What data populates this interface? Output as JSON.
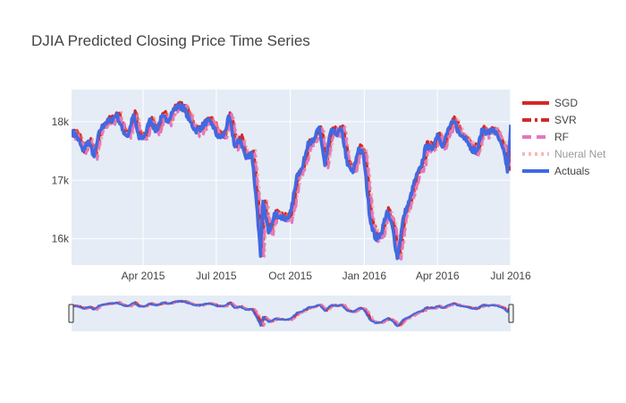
{
  "chart_data": {
    "type": "line",
    "title": "DJIA Predicted Closing Price Time Series",
    "xlabel": "",
    "ylabel": "",
    "xlim": [
      "2015-01-02",
      "2016-07-01"
    ],
    "ylim": [
      15550,
      18550
    ],
    "x_ticks": [
      {
        "date": "2015-04-01",
        "label": "Apr 2015"
      },
      {
        "date": "2015-07-01",
        "label": "Jul 2015"
      },
      {
        "date": "2015-10-01",
        "label": "Oct 2015"
      },
      {
        "date": "2016-01-01",
        "label": "Jan 2016"
      },
      {
        "date": "2016-04-01",
        "label": "Apr 2016"
      },
      {
        "date": "2016-07-01",
        "label": "Jul 2016"
      }
    ],
    "y_ticks": [
      {
        "value": 16000,
        "label": "16k"
      },
      {
        "value": 17000,
        "label": "17k"
      },
      {
        "value": 18000,
        "label": "18k"
      }
    ],
    "grid": true,
    "legend_position": "right",
    "range_slider": true,
    "actuals": [
      [
        "2015-01-02",
        17830
      ],
      [
        "2015-01-09",
        17740
      ],
      [
        "2015-01-16",
        17500
      ],
      [
        "2015-01-23",
        17670
      ],
      [
        "2015-01-30",
        17400
      ],
      [
        "2015-02-06",
        17850
      ],
      [
        "2015-02-13",
        17980
      ],
      [
        "2015-02-20",
        18020
      ],
      [
        "2015-02-27",
        18130
      ],
      [
        "2015-03-06",
        17860
      ],
      [
        "2015-03-13",
        17750
      ],
      [
        "2015-03-20",
        18120
      ],
      [
        "2015-03-27",
        17710
      ],
      [
        "2015-04-03",
        17760
      ],
      [
        "2015-04-10",
        18050
      ],
      [
        "2015-04-17",
        17830
      ],
      [
        "2015-04-24",
        18080
      ],
      [
        "2015-05-01",
        18020
      ],
      [
        "2015-05-08",
        18190
      ],
      [
        "2015-05-15",
        18270
      ],
      [
        "2015-05-22",
        18230
      ],
      [
        "2015-05-29",
        18010
      ],
      [
        "2015-06-05",
        17850
      ],
      [
        "2015-06-12",
        17900
      ],
      [
        "2015-06-19",
        18010
      ],
      [
        "2015-06-26",
        17950
      ],
      [
        "2015-07-03",
        17730
      ],
      [
        "2015-07-10",
        17760
      ],
      [
        "2015-07-17",
        18090
      ],
      [
        "2015-07-24",
        17570
      ],
      [
        "2015-07-31",
        17690
      ],
      [
        "2015-08-07",
        17370
      ],
      [
        "2015-08-14",
        17480
      ],
      [
        "2015-08-21",
        16460
      ],
      [
        "2015-08-25",
        15700
      ],
      [
        "2015-08-28",
        16640
      ],
      [
        "2015-09-04",
        16100
      ],
      [
        "2015-09-11",
        16430
      ],
      [
        "2015-09-18",
        16380
      ],
      [
        "2015-09-25",
        16310
      ],
      [
        "2015-10-02",
        16470
      ],
      [
        "2015-10-09",
        17080
      ],
      [
        "2015-10-16",
        17210
      ],
      [
        "2015-10-23",
        17650
      ],
      [
        "2015-10-30",
        17660
      ],
      [
        "2015-11-06",
        17910
      ],
      [
        "2015-11-13",
        17250
      ],
      [
        "2015-11-20",
        17820
      ],
      [
        "2015-11-27",
        17800
      ],
      [
        "2015-12-04",
        17850
      ],
      [
        "2015-12-11",
        17260
      ],
      [
        "2015-12-18",
        17130
      ],
      [
        "2015-12-25",
        17550
      ],
      [
        "2015-12-31",
        17430
      ],
      [
        "2016-01-08",
        16350
      ],
      [
        "2016-01-15",
        15990
      ],
      [
        "2016-01-22",
        16090
      ],
      [
        "2016-01-29",
        16470
      ],
      [
        "2016-02-05",
        16200
      ],
      [
        "2016-02-11",
        15660
      ],
      [
        "2016-02-19",
        16390
      ],
      [
        "2016-02-26",
        16640
      ],
      [
        "2016-03-04",
        17010
      ],
      [
        "2016-03-11",
        17210
      ],
      [
        "2016-03-18",
        17600
      ],
      [
        "2016-03-25",
        17520
      ],
      [
        "2016-04-01",
        17790
      ],
      [
        "2016-04-08",
        17580
      ],
      [
        "2016-04-15",
        17900
      ],
      [
        "2016-04-22",
        18000
      ],
      [
        "2016-04-29",
        17770
      ],
      [
        "2016-05-06",
        17740
      ],
      [
        "2016-05-13",
        17540
      ],
      [
        "2016-05-20",
        17500
      ],
      [
        "2016-05-27",
        17870
      ],
      [
        "2016-06-03",
        17810
      ],
      [
        "2016-06-10",
        17870
      ],
      [
        "2016-06-17",
        17680
      ],
      [
        "2016-06-24",
        17400
      ],
      [
        "2016-06-27",
        17140
      ],
      [
        "2016-07-01",
        17950
      ]
    ],
    "series": [
      {
        "name": "SGD",
        "color": "#d62728",
        "dash": "solid",
        "offset": 60,
        "noise": 35
      },
      {
        "name": "SVR",
        "color": "#cf2b2b",
        "dash": "dashdot",
        "offset": 40,
        "noise": 30
      },
      {
        "name": "RF",
        "color": "#e377c2",
        "dash": "dash",
        "offset": -40,
        "noise": 45
      },
      {
        "name": "Nueral Net",
        "color": "#f08080",
        "dash": "dot",
        "offset": 20,
        "noise": 25,
        "faded": true
      },
      {
        "name": "Actuals",
        "color": "#4169e1",
        "dash": "solid",
        "offset": 0,
        "noise": 0
      }
    ]
  }
}
